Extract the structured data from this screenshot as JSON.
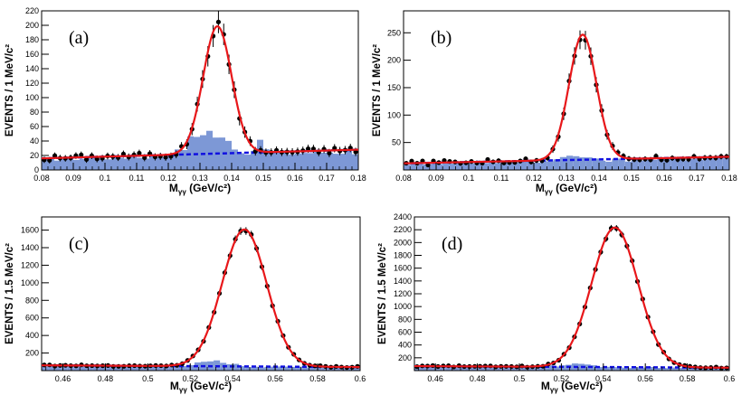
{
  "colors": {
    "fit": "#e8171a",
    "background_fit": "#1010e0",
    "histogram": "#7d98d6",
    "data": "#000000"
  },
  "chart_data": [
    {
      "type": "scatter",
      "panel_label": "(a)",
      "ylabel": "EVENTS / 1 MeV/c²",
      "xlabel_main": "M",
      "xlabel_sub": "γγ",
      "xlabel_unit": " (GeV/c²)",
      "xlim": [
        0.08,
        0.18
      ],
      "ylim": [
        0,
        220
      ],
      "xticks": [
        "0.08",
        "0.09",
        "0.1",
        "0.11",
        "0.12",
        "0.13",
        "0.14",
        "0.15",
        "0.16",
        "0.17",
        "0.18"
      ],
      "yticks": [
        "0",
        "20",
        "40",
        "60",
        "80",
        "100",
        "120",
        "140",
        "160",
        "180",
        "200",
        "220"
      ],
      "signal": {
        "peak": 0.1355,
        "sigma": 0.0045,
        "amplitude": 176
      },
      "background": {
        "at_min": 16,
        "at_max": 28
      },
      "histogram_extra": [
        {
          "x": 0.122,
          "v": 6
        },
        {
          "x": 0.126,
          "v": 10
        },
        {
          "x": 0.128,
          "v": 14
        },
        {
          "x": 0.13,
          "v": 12
        },
        {
          "x": 0.132,
          "v": 18
        },
        {
          "x": 0.134,
          "v": 15
        },
        {
          "x": 0.136,
          "v": 10
        },
        {
          "x": 0.138,
          "v": 12
        },
        {
          "x": 0.14,
          "v": 6
        },
        {
          "x": 0.142,
          "v": 4
        },
        {
          "x": 0.148,
          "v": 8
        },
        {
          "x": 0.15,
          "v": 7
        }
      ],
      "noise": 4
    },
    {
      "type": "scatter",
      "panel_label": "(b)",
      "ylabel": "EVENTS / 1 MeV/c²",
      "xlabel_main": "M",
      "xlabel_sub": "γγ",
      "xlabel_unit": " (GeV/c²)",
      "xlim": [
        0.08,
        0.18
      ],
      "ylim": [
        0,
        290
      ],
      "xticks": [
        "0.08",
        "0.09",
        "0.1",
        "0.11",
        "0.12",
        "0.13",
        "0.14",
        "0.15",
        "0.16",
        "0.17",
        "0.18"
      ],
      "yticks": [
        "50",
        "100",
        "150",
        "200",
        "250"
      ],
      "ytick_values": [
        50,
        100,
        150,
        200,
        250
      ],
      "signal": {
        "peak": 0.135,
        "sigma": 0.0042,
        "amplitude": 228
      },
      "background": {
        "at_min": 12,
        "at_max": 24
      },
      "histogram_extra": [
        {
          "x": 0.128,
          "v": 6
        },
        {
          "x": 0.132,
          "v": 8
        },
        {
          "x": 0.136,
          "v": 6
        }
      ],
      "noise": 4
    },
    {
      "type": "scatter",
      "panel_label": "(c)",
      "ylabel": "EVENTS / 1.5 MeV/c²",
      "xlabel_main": "M",
      "xlabel_sub": "γγ",
      "xlabel_unit": " (GeV/c²)",
      "xlim": [
        0.45,
        0.6
      ],
      "ylim": [
        0,
        1750
      ],
      "xticks": [
        "0.46",
        "0.48",
        "0.5",
        "0.52",
        "0.54",
        "0.56",
        "0.58",
        "0.6"
      ],
      "xtick_values": [
        0.46,
        0.48,
        0.5,
        0.52,
        0.54,
        0.56,
        0.58,
        0.6
      ],
      "yticks": [
        "200",
        "400",
        "600",
        "800",
        "1000",
        "1200",
        "1400",
        "1600"
      ],
      "ytick_values": [
        200,
        400,
        600,
        800,
        1000,
        1200,
        1400,
        1600
      ],
      "signal": {
        "peak": 0.5455,
        "sigma": 0.0105,
        "amplitude": 1560
      },
      "background": {
        "at_min": 60,
        "at_max": 40
      },
      "histogram_extra": [
        {
          "x": 0.52,
          "v": 20
        },
        {
          "x": 0.524,
          "v": 40
        },
        {
          "x": 0.528,
          "v": 60
        },
        {
          "x": 0.532,
          "v": 70
        },
        {
          "x": 0.536,
          "v": 50
        },
        {
          "x": 0.54,
          "v": 30
        }
      ],
      "noise": 8
    },
    {
      "type": "scatter",
      "panel_label": "(d)",
      "ylabel": "EVENTS / 1.5 MeV/c²",
      "xlabel_main": "M",
      "xlabel_sub": "γγ",
      "xlabel_unit": " (GeV/c²)",
      "xlim": [
        0.45,
        0.6
      ],
      "ylim": [
        0,
        2400
      ],
      "xticks": [
        "0.46",
        "0.48",
        "0.5",
        "0.52",
        "0.54",
        "0.56",
        "0.58",
        "0.6"
      ],
      "xtick_values": [
        0.46,
        0.48,
        0.5,
        0.52,
        0.54,
        0.56,
        0.58,
        0.6
      ],
      "yticks": [
        "200",
        "400",
        "600",
        "800",
        "1000",
        "1200",
        "1400",
        "1600",
        "1800",
        "2000",
        "2200",
        "2400"
      ],
      "ytick_values": [
        200,
        400,
        600,
        800,
        1000,
        1200,
        1400,
        1600,
        1800,
        2000,
        2200,
        2400
      ],
      "signal": {
        "peak": 0.5455,
        "sigma": 0.011,
        "amplitude": 2180
      },
      "background": {
        "at_min": 70,
        "at_max": 45
      },
      "histogram_extra": [
        {
          "x": 0.516,
          "v": 20
        },
        {
          "x": 0.52,
          "v": 30
        },
        {
          "x": 0.524,
          "v": 45
        },
        {
          "x": 0.528,
          "v": 55
        },
        {
          "x": 0.532,
          "v": 40
        },
        {
          "x": 0.536,
          "v": 25
        }
      ],
      "noise": 10
    }
  ]
}
